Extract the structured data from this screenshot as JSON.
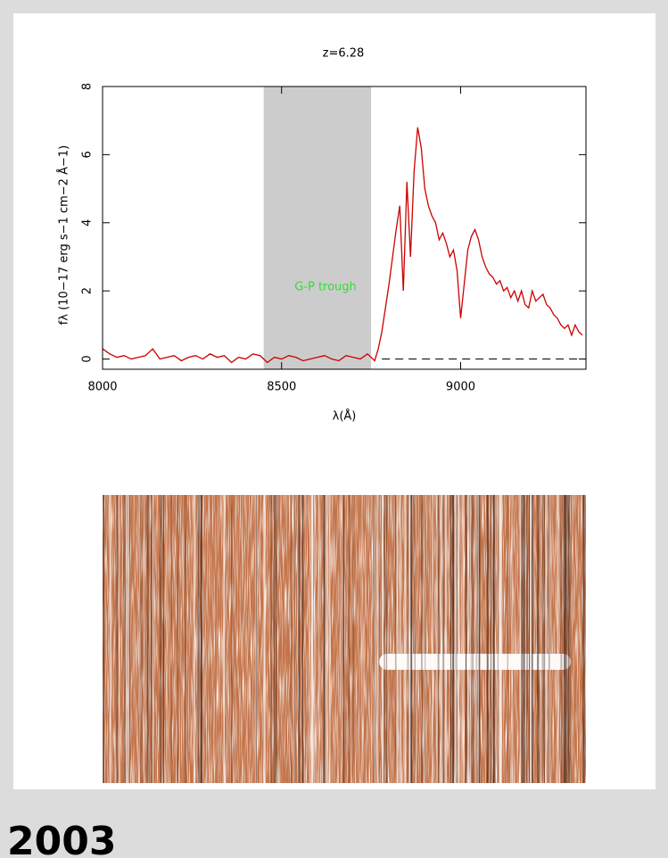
{
  "chart_data": {
    "type": "line",
    "title": "z=6.28",
    "x_label": "λ(Å)",
    "y_label": "fλ (10−17 erg s−1 cm−2 Å−1)",
    "annotation": "G-P trough",
    "annotation_color": "#33dd33",
    "shade": {
      "x": [
        8450,
        8750
      ],
      "color": "#cccccc"
    },
    "hline": {
      "y": 0,
      "x_start": 8780,
      "dashed": true
    },
    "xlim": [
      8000,
      9350
    ],
    "ylim": [
      -0.3,
      8
    ],
    "xticks": [
      8000,
      8500,
      9000
    ],
    "yticks": [
      0,
      2,
      4,
      6,
      8
    ],
    "x": [
      8000,
      8020,
      8040,
      8060,
      8080,
      8100,
      8120,
      8140,
      8160,
      8180,
      8200,
      8220,
      8240,
      8260,
      8280,
      8300,
      8320,
      8340,
      8360,
      8380,
      8400,
      8420,
      8440,
      8460,
      8480,
      8500,
      8520,
      8540,
      8560,
      8580,
      8600,
      8620,
      8640,
      8660,
      8680,
      8700,
      8720,
      8740,
      8750,
      8760,
      8770,
      8780,
      8790,
      8800,
      8810,
      8820,
      8830,
      8840,
      8850,
      8860,
      8870,
      8880,
      8890,
      8900,
      8910,
      8920,
      8930,
      8940,
      8950,
      8960,
      8970,
      8980,
      8990,
      9000,
      9010,
      9020,
      9030,
      9040,
      9050,
      9060,
      9070,
      9080,
      9090,
      9100,
      9110,
      9120,
      9130,
      9140,
      9150,
      9160,
      9170,
      9180,
      9190,
      9200,
      9210,
      9220,
      9230,
      9240,
      9250,
      9260,
      9270,
      9280,
      9290,
      9300,
      9310,
      9320,
      9330,
      9340
    ],
    "series": [
      {
        "color": "#cc0000",
        "values": [
          0.3,
          0.15,
          0.05,
          0.1,
          0.0,
          0.05,
          0.1,
          0.3,
          0.0,
          0.05,
          0.1,
          -0.05,
          0.05,
          0.1,
          0.0,
          0.15,
          0.05,
          0.1,
          -0.1,
          0.05,
          0.0,
          0.15,
          0.1,
          -0.1,
          0.05,
          0.0,
          0.1,
          0.05,
          -0.05,
          0.0,
          0.05,
          0.1,
          0.0,
          -0.05,
          0.1,
          0.05,
          0.0,
          0.15,
          0.05,
          -0.05,
          0.3,
          0.8,
          1.5,
          2.2,
          3.0,
          3.8,
          4.5,
          2.0,
          5.2,
          3.0,
          5.5,
          6.8,
          6.2,
          5.0,
          4.5,
          4.2,
          4.0,
          3.5,
          3.7,
          3.4,
          3.0,
          3.2,
          2.6,
          1.2,
          2.2,
          3.2,
          3.6,
          3.8,
          3.5,
          3.0,
          2.7,
          2.5,
          2.4,
          2.2,
          2.3,
          2.0,
          2.1,
          1.8,
          2.0,
          1.7,
          2.0,
          1.6,
          1.5,
          2.0,
          1.7,
          1.8,
          1.9,
          1.6,
          1.5,
          1.3,
          1.2,
          1.0,
          0.9,
          1.0,
          0.7,
          1.0,
          0.8,
          0.7
        ]
      }
    ]
  },
  "footer_text": "2003"
}
